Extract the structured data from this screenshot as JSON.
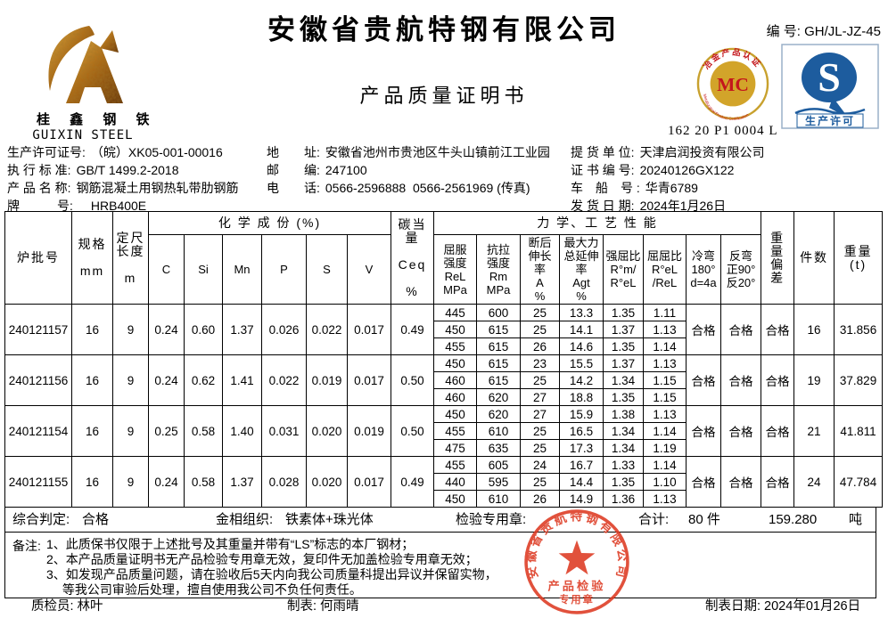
{
  "header": {
    "company": "安徽省贵航特钢有限公司",
    "doc_title": "产品质量证明书",
    "serial": "编 号: GH/JL-JZ-45",
    "mc_code": "162 20 P1 0004 L",
    "logo_cn": "桂 鑫 钢 铁",
    "logo_en": "GUIXIN STEEL",
    "mc_badge": {
      "arc_top": "冶金产品认证",
      "center": "MC",
      "arc_bottom": "Metallurgical Product Certification"
    },
    "qs_badge": {
      "letter": "S",
      "label": "生产许可"
    },
    "accent_red": "#c4161c",
    "accent_blue": "#1d5c9e",
    "stamp_red": "#dd3a22"
  },
  "info": {
    "left": [
      {
        "label": "生产许可证号:",
        "value": "（皖）XK05-001-00016"
      },
      {
        "label": "执 行 标 准:",
        "value": "GB/T 1499.2-2018"
      },
      {
        "label": "产 品 名 称:",
        "value": "钢筋混凝土用钢热轧带肋钢筋"
      },
      {
        "label": "牌　　　号:",
        "value": "　HRB400E"
      }
    ],
    "middle": [
      {
        "label": "地　　址:",
        "value": "安徽省池州市贵池区牛头山镇前江工业园"
      },
      {
        "label": "邮　　编:",
        "value": "247100"
      },
      {
        "label": "电　　话:",
        "value": "0566-2596888  0566-2561969 (传真)"
      }
    ],
    "right": [
      {
        "label": "提 货 单 位:",
        "value": "天津启润投资有限公司"
      },
      {
        "label": "证 书 编 号:",
        "value": "20240126GX122"
      },
      {
        "label": "车　船　号 :",
        "value": "华青6789"
      },
      {
        "label": "发 货 日 期:",
        "value": "2024年1月26日"
      }
    ]
  },
  "table": {
    "group_headers": {
      "chem": "化 学 成 份 (%)",
      "mech": "力 学、工 艺 性 能"
    },
    "columns": {
      "batch": "炉批号",
      "spec": "规格\n\nmm",
      "length": "定尺\n长度\n\nm",
      "chem": [
        "C",
        "Si",
        "Mn",
        "P",
        "S",
        "V"
      ],
      "ceq": "碳当量\n\nCeq\n\n%",
      "mech": [
        "屈服\n强度\nReL\nMPa",
        "抗拉\n强度\nRm\nMPa",
        "断后\n伸长\n率\nA\n%",
        "最大力\n总延伸\n率\nAgt\n%",
        "强屈比\nR°m/\nR°eL",
        "屈屈比\nR°eL\n/ReL",
        "冷弯\n180°\nd=4a",
        "反弯\n正90°\n反20°"
      ],
      "weight_dev": "重\n量\n偏\n差",
      "pieces": "件数",
      "weight": "重量\n(t)"
    },
    "groups": [
      {
        "batch": "240121157",
        "spec": "16",
        "length": "9",
        "chem": [
          "0.24",
          "0.60",
          "1.37",
          "0.026",
          "0.022",
          "0.017"
        ],
        "ceq": "0.49",
        "rows": [
          [
            "445",
            "600",
            "25",
            "13.3",
            "1.35",
            "1.11"
          ],
          [
            "450",
            "615",
            "25",
            "14.1",
            "1.37",
            "1.13"
          ],
          [
            "455",
            "615",
            "26",
            "14.6",
            "1.35",
            "1.14"
          ]
        ],
        "cold_bend": "合格",
        "rebend": "合格",
        "weight_dev": "合格",
        "pieces": "16",
        "weight": "31.856"
      },
      {
        "batch": "240121156",
        "spec": "16",
        "length": "9",
        "chem": [
          "0.24",
          "0.62",
          "1.41",
          "0.022",
          "0.019",
          "0.017"
        ],
        "ceq": "0.50",
        "rows": [
          [
            "450",
            "615",
            "23",
            "15.5",
            "1.37",
            "1.13"
          ],
          [
            "460",
            "615",
            "25",
            "14.2",
            "1.34",
            "1.15"
          ],
          [
            "460",
            "620",
            "27",
            "18.8",
            "1.35",
            "1.15"
          ]
        ],
        "cold_bend": "合格",
        "rebend": "合格",
        "weight_dev": "合格",
        "pieces": "19",
        "weight": "37.829"
      },
      {
        "batch": "240121154",
        "spec": "16",
        "length": "9",
        "chem": [
          "0.25",
          "0.58",
          "1.40",
          "0.031",
          "0.020",
          "0.019"
        ],
        "ceq": "0.50",
        "rows": [
          [
            "450",
            "620",
            "27",
            "15.9",
            "1.38",
            "1.13"
          ],
          [
            "455",
            "610",
            "25",
            "16.5",
            "1.34",
            "1.14"
          ],
          [
            "475",
            "635",
            "25",
            "17.3",
            "1.34",
            "1.19"
          ]
        ],
        "cold_bend": "合格",
        "rebend": "合格",
        "weight_dev": "合格",
        "pieces": "21",
        "weight": "41.811"
      },
      {
        "batch": "240121155",
        "spec": "16",
        "length": "9",
        "chem": [
          "0.24",
          "0.58",
          "1.37",
          "0.028",
          "0.020",
          "0.017"
        ],
        "ceq": "0.49",
        "rows": [
          [
            "455",
            "605",
            "24",
            "16.7",
            "1.33",
            "1.14"
          ],
          [
            "440",
            "595",
            "25",
            "14.4",
            "1.35",
            "1.10"
          ],
          [
            "450",
            "610",
            "26",
            "14.9",
            "1.36",
            "1.13"
          ]
        ],
        "cold_bend": "合格",
        "rebend": "合格",
        "weight_dev": "合格",
        "pieces": "24",
        "weight": "47.784"
      }
    ]
  },
  "summary": {
    "verdict_label": "综合判定:",
    "verdict": "合格",
    "metallo_label": "金相组织:",
    "metallo": "铁素体+珠光体",
    "seal_label": "检验专用章:",
    "total_label": "合计:",
    "total_pieces": "80 件",
    "total_weight": "159.280",
    "total_weight_unit": "吨"
  },
  "notes": {
    "label": "备注:",
    "lines": [
      "1、此质保书仅限于上述批号及其重量并带有“LS”标志的本厂钢材；",
      "2、本产品质量证明书无产品检验专用章无效，复印件无加盖检验专用章无效；",
      "3、如发现产品质量问题，请在验收后5天内向我公司质量科提出异议并保留实物，",
      "　 等我公司审验后处理，擅自使用我公司不负任何责任。"
    ]
  },
  "stamp": {
    "company": "安徽省贵航特钢有限公司",
    "line1": "产品检验",
    "line2": "专用章"
  },
  "footer": {
    "inspector": "质检员: 林叶",
    "tabulator": "制表: 何雨晴",
    "date": "制表日期: 2024年01月26日"
  }
}
